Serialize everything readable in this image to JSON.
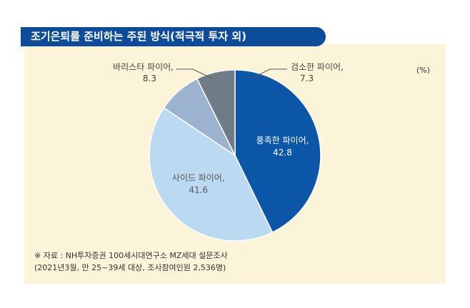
{
  "title": "조기은퇴를 준비하는 주된 방식(적극적 투자 외)",
  "unit": "(%)",
  "colors": {
    "title_bg": "#0d4c9a",
    "panel_bg": "#fbf4d8",
    "slice_1": "#0b56a6",
    "slice_2": "#bcd9f2",
    "slice_3": "#9cb3cf",
    "slice_4": "#6f7b86"
  },
  "chart_data": {
    "type": "pie",
    "title": "조기은퇴를 준비하는 주된 방식(적극적 투자 외)",
    "unit": "(%)",
    "slices": [
      {
        "label": "풍족한 파이어,",
        "value": 42.8,
        "value_text": "42.8"
      },
      {
        "label": "사이드 파이어,",
        "value": 41.6,
        "value_text": "41.6"
      },
      {
        "label": "바리스타 파이어,",
        "value": 8.3,
        "value_text": "8.3"
      },
      {
        "label": "검소한 파이어,",
        "value": 7.3,
        "value_text": "7.3"
      }
    ]
  },
  "source": {
    "line1": "※ 자료 : NH투자증권 100세시대연구소 MZ세대 설문조사",
    "line2": "(2021년3월, 만 25~39세 대상, 조사참여인원 2,536명)"
  }
}
